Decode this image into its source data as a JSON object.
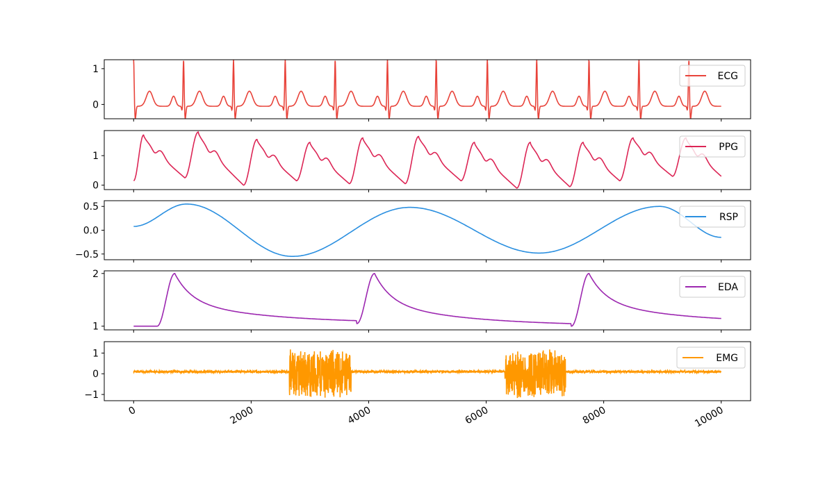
{
  "chart_data": [
    {
      "type": "line",
      "name": "ECG",
      "color": "#e8433a",
      "yticks": [
        0,
        1
      ],
      "ylim": [
        -0.4,
        1.25
      ],
      "legend": "ECG",
      "legend_position": "right",
      "description_values": "QRS peaks ~1.15 at x=0,850,1700,2580,3430,4320,5150,6020,6860,7750,8600,9450; T waves ~0.4"
    },
    {
      "type": "line",
      "name": "PPG",
      "color": "#dc2555",
      "yticks": [
        0,
        1
      ],
      "ylim": [
        -0.15,
        1.85
      ],
      "legend": "PPG",
      "legend_position": "right"
    },
    {
      "type": "line",
      "name": "RSP",
      "color": "#2a8fe0",
      "yticks": [
        -0.5,
        0.0,
        0.5
      ],
      "ylim": [
        -0.62,
        0.62
      ],
      "legend": "RSP",
      "legend_position": "right"
    },
    {
      "type": "line",
      "name": "EDA",
      "color": "#9c27b0",
      "yticks": [
        1,
        2
      ],
      "ylim": [
        0.93,
        2.05
      ],
      "legend": "EDA",
      "legend_position": "right"
    },
    {
      "type": "line",
      "name": "EMG",
      "color": "#ff9800",
      "yticks": [
        -1,
        0,
        1
      ],
      "ylim": [
        -1.3,
        1.55
      ],
      "legend": "EMG",
      "legend_position": "right"
    }
  ],
  "x_axis": {
    "ticks": [
      0,
      2000,
      4000,
      6000,
      8000,
      10000
    ],
    "labels": [
      "0",
      "2000",
      "4000",
      "6000",
      "8000",
      "10000"
    ],
    "xlim": [
      -500,
      10500
    ]
  },
  "legends": {
    "ecg": "ECG",
    "ppg": "PPG",
    "rsp": "RSP",
    "eda": "EDA",
    "emg": "EMG"
  },
  "ytick_labels": {
    "ecg": [
      "0",
      "1"
    ],
    "ppg": [
      "0",
      "1"
    ],
    "rsp": [
      "−0.5",
      "0.0",
      "0.5"
    ],
    "eda": [
      "1",
      "2"
    ],
    "emg": [
      "−1",
      "0",
      "1"
    ]
  },
  "series_params": {
    "ecg": {
      "peaks": [
        0,
        850,
        1700,
        2580,
        3430,
        4320,
        5150,
        6020,
        6860,
        7750,
        8600,
        9450
      ],
      "r_amplitude": 1.15,
      "s_amplitude": -0.35,
      "t_amplitude": 0.42,
      "p_amplitude": 0.28
    },
    "ppg": {
      "peaks": [
        170,
        1100,
        2100,
        3000,
        3900,
        4850,
        5800,
        6750,
        7650,
        8500,
        9400
      ],
      "peak_values": [
        1.7,
        1.8,
        1.55,
        1.45,
        1.6,
        1.65,
        1.45,
        1.45,
        1.45,
        1.6,
        1.6
      ],
      "trough_values": [
        0.15,
        0.25,
        0.0,
        0.15,
        0.05,
        0.05,
        0.15,
        -0.1,
        -0.05,
        0.15,
        0.3
      ]
    },
    "rsp": {
      "points": [
        [
          0,
          0.08
        ],
        [
          900,
          0.55
        ],
        [
          2700,
          -0.55
        ],
        [
          4700,
          0.48
        ],
        [
          6900,
          -0.48
        ],
        [
          8950,
          0.5
        ],
        [
          10000,
          -0.15
        ]
      ]
    },
    "eda": {
      "onsets": [
        400,
        3800,
        7450
      ],
      "peak_positions": [
        700,
        4100,
        7750
      ],
      "baseline": 1.0,
      "peak": 2.0,
      "recovery_end_values": [
        1.05,
        1.0,
        1.05
      ]
    },
    "emg": {
      "baseline_amplitude": 0.05,
      "bursts": [
        [
          2650,
          3700
        ],
        [
          6320,
          7350
        ]
      ],
      "burst_amplitude": 1.15
    }
  }
}
